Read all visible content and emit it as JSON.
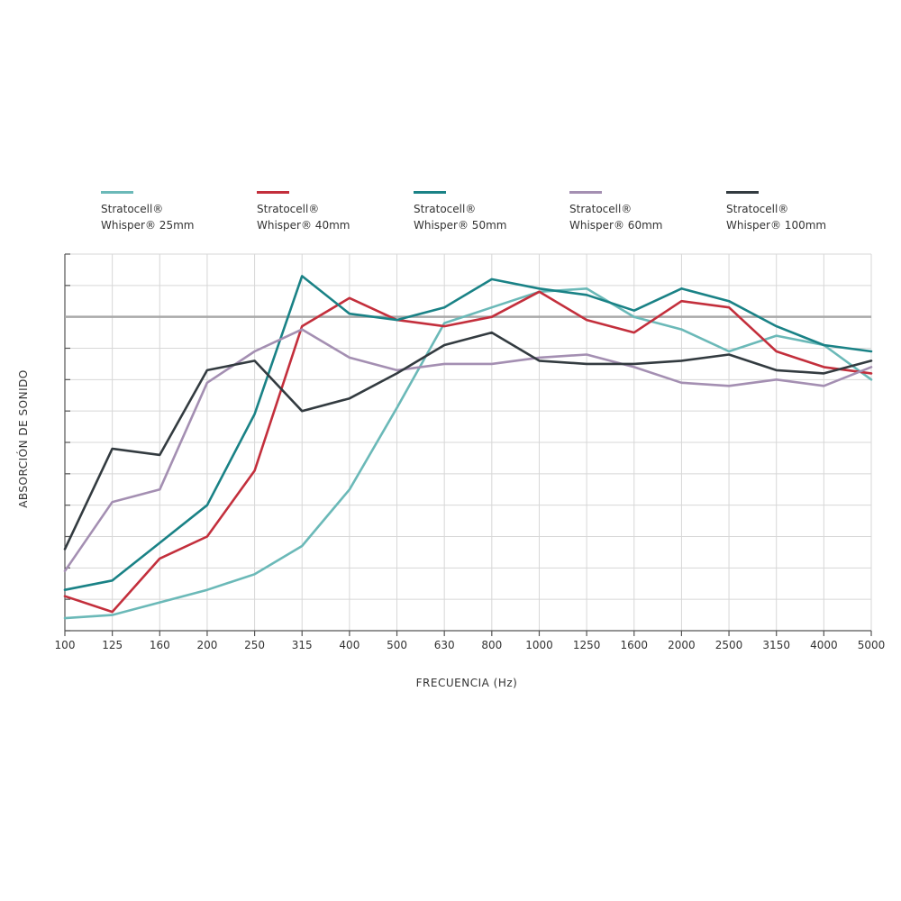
{
  "chart_data": {
    "type": "line",
    "xlabel": "FRECUENCIA  (Hz)",
    "ylabel": "ABSORCIÓN DE SONIDO",
    "categories": [
      "100",
      "125",
      "160",
      "200",
      "250",
      "315",
      "400",
      "500",
      "630",
      "800",
      "1000",
      "1250",
      "1600",
      "2000",
      "2500",
      "3150",
      "4000",
      "5000"
    ],
    "ylim": [
      0,
      1.2
    ],
    "reference_line": 1.0,
    "grid": true,
    "legend_position": "top",
    "series": [
      {
        "name_line1": "Stratocell®",
        "name_line2": "Whisper® 25mm",
        "color": "#6bb9b8",
        "values": [
          0.04,
          0.05,
          0.09,
          0.13,
          0.18,
          0.27,
          0.45,
          0.71,
          0.98,
          1.03,
          1.08,
          1.09,
          1.0,
          0.96,
          0.89,
          0.94,
          0.91,
          0.8
        ]
      },
      {
        "name_line1": "Stratocell®",
        "name_line2": "Whisper® 40mm",
        "color": "#c32f3c",
        "values": [
          0.11,
          0.06,
          0.23,
          0.3,
          0.51,
          0.97,
          1.06,
          0.99,
          0.97,
          1.0,
          1.08,
          0.99,
          0.95,
          1.05,
          1.03,
          0.89,
          0.84,
          0.82
        ]
      },
      {
        "name_line1": "Stratocell®",
        "name_line2": "Whisper® 50mm",
        "color": "#1a8286",
        "values": [
          0.13,
          0.16,
          0.28,
          0.4,
          0.69,
          1.13,
          1.01,
          0.99,
          1.03,
          1.12,
          1.09,
          1.07,
          1.02,
          1.09,
          1.05,
          0.97,
          0.91,
          0.89
        ]
      },
      {
        "name_line1": "Stratocell®",
        "name_line2": "Whisper® 60mm",
        "color": "#a48fb2",
        "values": [
          0.19,
          0.41,
          0.45,
          0.79,
          0.89,
          0.96,
          0.87,
          0.83,
          0.85,
          0.85,
          0.87,
          0.88,
          0.84,
          0.79,
          0.78,
          0.8,
          0.78,
          0.84
        ]
      },
      {
        "name_line1": "Stratocell®",
        "name_line2": "Whisper® 100mm",
        "color": "#333b40",
        "values": [
          0.26,
          0.58,
          0.56,
          0.83,
          0.86,
          0.7,
          0.74,
          0.82,
          0.91,
          0.95,
          0.86,
          0.85,
          0.85,
          0.86,
          0.88,
          0.83,
          0.82,
          0.86
        ]
      }
    ]
  }
}
